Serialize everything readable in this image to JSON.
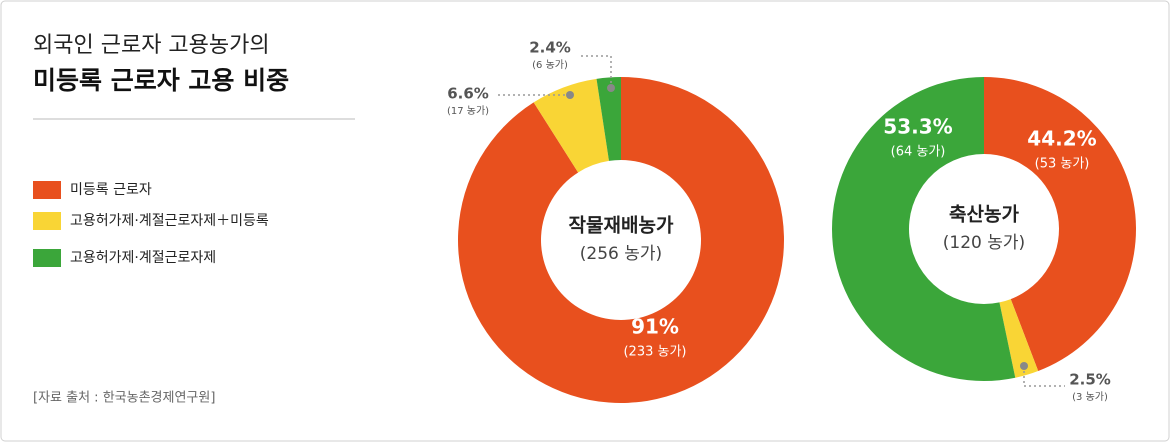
{
  "header": {
    "title": "외국인 근로자 고용농가의",
    "subtitle": "미등록 근로자 고용 비중"
  },
  "legend": [
    {
      "name": "미등록 근로자",
      "color": "#e8501e"
    },
    {
      "name": "고용허가제·계절근로자제＋미등록",
      "color": "#f9d535"
    },
    {
      "name": "고용허가제·계절근로자제",
      "color": "#3ba63a"
    }
  ],
  "source": "[자료 출처 : 한국농촌경제연구원]",
  "chart_data": [
    {
      "type": "donut",
      "title": "작물재배농가",
      "subtitle": "(256 농가)",
      "values": [
        91,
        6.6,
        2.4
      ],
      "value_labels": [
        "91%",
        "6.6%",
        "2.4%"
      ],
      "count_labels": [
        "(233 농가)",
        "(17 농가)",
        "(6 농가)"
      ]
    },
    {
      "type": "donut",
      "title": "축산농가",
      "subtitle": "(120 농가)",
      "values": [
        44.2,
        2.5,
        53.3
      ],
      "value_labels": [
        "44.2%",
        "2.5%",
        "53.3%"
      ],
      "count_labels": [
        "(53 농가)",
        "(3 농가)",
        "(64 농가)"
      ]
    }
  ]
}
